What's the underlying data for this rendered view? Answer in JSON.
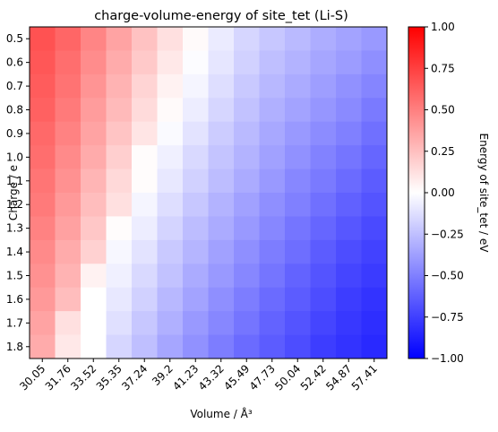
{
  "chart_data": {
    "type": "heatmap",
    "title": "charge-volume-energy of site_tet (Li-S)",
    "xlabel": "Volume / Å³",
    "ylabel": "Charge / e",
    "colorbar_label": "Energy of site_tet / eV",
    "colormap": "bwr",
    "vmin": -1.0,
    "vmax": 1.0,
    "colorbar_ticks": [
      "1.00",
      "0.75",
      "0.50",
      "0.25",
      "0.00",
      "−0.25",
      "−0.50",
      "−0.75",
      "−1.00"
    ],
    "colorbar_tick_values": [
      1.0,
      0.75,
      0.5,
      0.25,
      0.0,
      -0.25,
      -0.5,
      -0.75,
      -1.0
    ],
    "x_categories": [
      "30.05",
      "31.76",
      "33.52",
      "35.35",
      "37.24",
      "39.2",
      "41.23",
      "43.32",
      "45.49",
      "47.73",
      "50.04",
      "52.42",
      "54.87",
      "57.41"
    ],
    "y_categories": [
      "0.5",
      "0.6",
      "0.7",
      "0.8",
      "0.9",
      "1.0",
      "1.1",
      "1.2",
      "1.3",
      "1.4",
      "1.5",
      "1.6",
      "1.7",
      "1.8"
    ],
    "values": [
      [
        0.68,
        0.6,
        0.48,
        0.36,
        0.24,
        0.12,
        0.02,
        -0.08,
        -0.16,
        -0.22,
        -0.27,
        -0.32,
        -0.36,
        -0.4
      ],
      [
        0.66,
        0.57,
        0.45,
        0.33,
        0.21,
        0.09,
        -0.01,
        -0.1,
        -0.18,
        -0.25,
        -0.3,
        -0.35,
        -0.39,
        -0.44
      ],
      [
        0.64,
        0.55,
        0.42,
        0.3,
        0.17,
        0.05,
        -0.04,
        -0.13,
        -0.21,
        -0.28,
        -0.33,
        -0.38,
        -0.43,
        -0.48
      ],
      [
        0.62,
        0.52,
        0.39,
        0.27,
        0.14,
        0.02,
        -0.07,
        -0.16,
        -0.24,
        -0.31,
        -0.36,
        -0.41,
        -0.46,
        -0.52
      ],
      [
        0.59,
        0.49,
        0.36,
        0.23,
        0.1,
        -0.02,
        -0.11,
        -0.2,
        -0.27,
        -0.34,
        -0.4,
        -0.45,
        -0.5,
        -0.56
      ],
      [
        0.57,
        0.46,
        0.33,
        0.19,
        0.01,
        -0.06,
        -0.15,
        -0.23,
        -0.3,
        -0.37,
        -0.43,
        -0.49,
        -0.54,
        -0.6
      ],
      [
        0.54,
        0.43,
        0.29,
        0.15,
        0.01,
        -0.09,
        -0.18,
        -0.26,
        -0.33,
        -0.4,
        -0.47,
        -0.52,
        -0.58,
        -0.64
      ],
      [
        0.52,
        0.4,
        0.26,
        0.12,
        -0.04,
        -0.13,
        -0.22,
        -0.3,
        -0.37,
        -0.44,
        -0.5,
        -0.56,
        -0.62,
        -0.67
      ],
      [
        0.49,
        0.37,
        0.22,
        0.01,
        -0.07,
        -0.17,
        -0.26,
        -0.33,
        -0.4,
        -0.47,
        -0.54,
        -0.6,
        -0.66,
        -0.71
      ],
      [
        0.46,
        0.33,
        0.18,
        -0.03,
        -0.11,
        -0.21,
        -0.29,
        -0.37,
        -0.44,
        -0.51,
        -0.57,
        -0.64,
        -0.7,
        -0.74
      ],
      [
        0.43,
        0.3,
        0.05,
        -0.06,
        -0.15,
        -0.24,
        -0.33,
        -0.4,
        -0.47,
        -0.54,
        -0.61,
        -0.67,
        -0.73,
        -0.77
      ],
      [
        0.4,
        0.26,
        0.0,
        -0.09,
        -0.18,
        -0.28,
        -0.36,
        -0.44,
        -0.51,
        -0.58,
        -0.64,
        -0.7,
        -0.76,
        -0.8
      ],
      [
        0.36,
        0.12,
        0.0,
        -0.12,
        -0.22,
        -0.31,
        -0.4,
        -0.47,
        -0.54,
        -0.61,
        -0.67,
        -0.73,
        -0.78,
        -0.82
      ],
      [
        0.33,
        0.09,
        0.0,
        -0.16,
        -0.25,
        -0.35,
        -0.43,
        -0.51,
        -0.58,
        -0.64,
        -0.7,
        -0.76,
        -0.8,
        -0.84
      ]
    ]
  }
}
